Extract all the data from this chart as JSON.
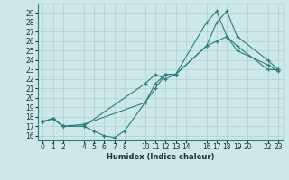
{
  "xlabel": "Humidex (Indice chaleur)",
  "ylabel": "",
  "bg_color": "#cce8e8",
  "line_color": "#2d7d7d",
  "grid_color": "#b0d0d0",
  "xlim": [
    -0.5,
    23.5
  ],
  "ylim": [
    15.5,
    30.0
  ],
  "yticks": [
    16,
    17,
    18,
    19,
    20,
    21,
    22,
    23,
    24,
    25,
    26,
    27,
    28,
    29
  ],
  "xticks": [
    0,
    1,
    2,
    4,
    5,
    6,
    7,
    8,
    10,
    11,
    12,
    13,
    14,
    16,
    17,
    18,
    19,
    20,
    22,
    23
  ],
  "series": [
    {
      "x": [
        0,
        1,
        2,
        4,
        10,
        11,
        12,
        13,
        16,
        17,
        18,
        19,
        22,
        23
      ],
      "y": [
        17.5,
        17.8,
        17.0,
        17.0,
        21.5,
        22.5,
        22.0,
        22.5,
        28.0,
        29.2,
        26.5,
        25.5,
        23.0,
        23.0
      ]
    },
    {
      "x": [
        0,
        1,
        2,
        4,
        5,
        6,
        7,
        8,
        10,
        11,
        12,
        13,
        16,
        17,
        18,
        19,
        22,
        23
      ],
      "y": [
        17.5,
        17.8,
        17.0,
        17.0,
        16.5,
        16.0,
        15.8,
        16.5,
        19.5,
        21.5,
        22.5,
        22.5,
        25.5,
        28.0,
        29.2,
        26.5,
        24.0,
        23.0
      ]
    },
    {
      "x": [
        0,
        1,
        2,
        4,
        10,
        11,
        12,
        13,
        16,
        17,
        18,
        19,
        22,
        23
      ],
      "y": [
        17.5,
        17.8,
        17.0,
        17.2,
        19.5,
        21.0,
        22.5,
        22.5,
        25.5,
        26.0,
        26.5,
        25.0,
        23.5,
        22.8
      ]
    }
  ],
  "tick_fontsize": 5.5,
  "xlabel_fontsize": 6,
  "linewidth": 0.8,
  "markersize": 3.5
}
